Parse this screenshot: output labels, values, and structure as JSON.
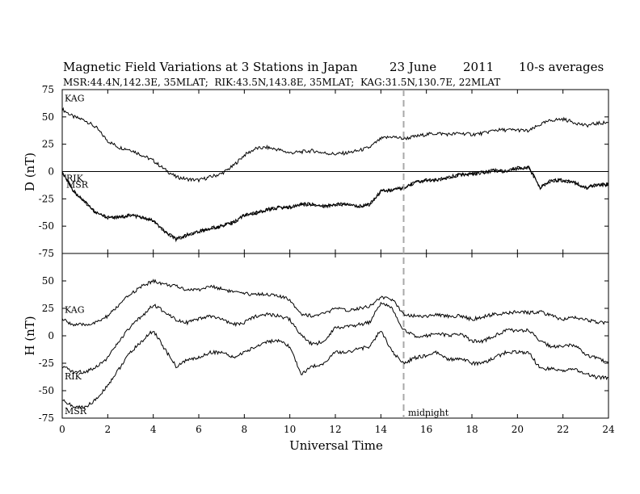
{
  "header": {
    "title": "Magnetic Field Variations at 3 Stations in Japan",
    "date": "23 June",
    "year": "2011",
    "averaging": "10-s averages",
    "stations": "MSR:44.4N,142.3E, 35MLAT;  RIK:43.5N,143.8E, 35MLAT;  KAG:31.5N,130.7E, 22MLAT"
  },
  "chart_data": [
    {
      "type": "line",
      "panel": "D",
      "ylabel": "D (nT)",
      "ylim": [
        -75,
        75
      ],
      "yticks": [
        75,
        50,
        25,
        0,
        -25,
        -50,
        -75
      ],
      "xlim": [
        0,
        24
      ],
      "zero_line": true,
      "series": [
        {
          "name": "KAG",
          "x": [
            0,
            0.5,
            1,
            1.5,
            2,
            2.5,
            3,
            3.5,
            4,
            4.5,
            5,
            5.5,
            6,
            6.5,
            7,
            7.5,
            8,
            8.5,
            9,
            9.5,
            10,
            10.5,
            11,
            11.5,
            12,
            12.5,
            13,
            13.5,
            14,
            14.5,
            15,
            15.5,
            16,
            16.5,
            17,
            17.5,
            18,
            18.5,
            19,
            19.5,
            20,
            20.5,
            21,
            21.5,
            22,
            22.5,
            23,
            23.5,
            24
          ],
          "y": [
            57,
            50,
            47,
            40,
            28,
            22,
            20,
            15,
            10,
            2,
            -5,
            -7,
            -8,
            -5,
            -2,
            5,
            15,
            21,
            22,
            20,
            17,
            18,
            19,
            17,
            16,
            17,
            19,
            22,
            30,
            32,
            30,
            32,
            34,
            35,
            34,
            35,
            34,
            35,
            38,
            38,
            38,
            37,
            43,
            47,
            48,
            45,
            42,
            44,
            45
          ]
        },
        {
          "name": "RIK",
          "x": [
            0,
            0.5,
            1,
            1.5,
            2,
            2.5,
            3,
            3.5,
            4,
            4.5,
            5,
            5.5,
            6,
            6.5,
            7,
            7.5,
            8,
            8.5,
            9,
            9.5,
            10,
            10.5,
            11,
            11.5,
            12,
            12.5,
            13,
            13.5,
            14,
            14.5,
            15,
            15.5,
            16,
            16.5,
            17,
            17.5,
            18,
            18.5,
            19,
            19.5,
            20,
            20.5,
            21,
            21.5,
            22,
            22.5,
            23,
            23.5,
            24
          ],
          "y": [
            0,
            -18,
            -28,
            -38,
            -42,
            -42,
            -40,
            -42,
            -45,
            -55,
            -62,
            -58,
            -55,
            -52,
            -50,
            -47,
            -40,
            -38,
            -35,
            -33,
            -33,
            -30,
            -30,
            -32,
            -30,
            -30,
            -32,
            -30,
            -18,
            -17,
            -15,
            -10,
            -8,
            -8,
            -5,
            -3,
            -2,
            -1,
            1,
            0,
            3,
            4,
            -15,
            -8,
            -8,
            -10,
            -15,
            -12,
            -12
          ]
        },
        {
          "name": "MSR",
          "x": [
            0,
            0.5,
            1,
            1.5,
            2,
            2.5,
            3,
            3.5,
            4,
            4.5,
            5,
            5.5,
            6,
            6.5,
            7,
            7.5,
            8,
            8.5,
            9,
            9.5,
            10,
            10.5,
            11,
            11.5,
            12,
            12.5,
            13,
            13.5,
            14,
            14.5,
            15,
            15.5,
            16,
            16.5,
            17,
            17.5,
            18,
            18.5,
            19,
            19.5,
            20,
            20.5,
            21,
            21.5,
            22,
            22.5,
            23,
            23.5,
            24
          ],
          "y": [
            0,
            -18,
            -28,
            -38,
            -42,
            -42,
            -40,
            -42,
            -45,
            -55,
            -62,
            -58,
            -55,
            -52,
            -50,
            -47,
            -40,
            -38,
            -35,
            -33,
            -33,
            -30,
            -30,
            -32,
            -30,
            -30,
            -32,
            -30,
            -18,
            -17,
            -15,
            -10,
            -8,
            -8,
            -5,
            -3,
            -2,
            -1,
            1,
            0,
            3,
            4,
            -15,
            -8,
            -8,
            -10,
            -15,
            -12,
            -12
          ]
        }
      ]
    },
    {
      "type": "line",
      "panel": "H",
      "ylabel": "H (nT)",
      "ylim": [
        -75,
        75
      ],
      "yticks": [
        75,
        50,
        25,
        0,
        -25,
        -50,
        -75
      ],
      "xlim": [
        0,
        24
      ],
      "xticks": [
        0,
        2,
        4,
        6,
        8,
        10,
        12,
        14,
        16,
        18,
        20,
        22,
        24
      ],
      "xlabel": "Universal Time",
      "vline": {
        "x": 15,
        "label": "midnight"
      },
      "series": [
        {
          "name": "KAG",
          "x": [
            0,
            0.5,
            1,
            1.5,
            2,
            2.5,
            3,
            3.5,
            4,
            4.5,
            5,
            5.5,
            6,
            6.5,
            7,
            7.5,
            8,
            8.5,
            9,
            9.5,
            10,
            10.5,
            11,
            11.5,
            12,
            12.5,
            13,
            13.5,
            14,
            14.5,
            15,
            15.5,
            16,
            16.5,
            17,
            17.5,
            18,
            18.5,
            19,
            19.5,
            20,
            20.5,
            21,
            21.5,
            22,
            22.5,
            23,
            23.5,
            24
          ],
          "y": [
            15,
            10,
            10,
            12,
            18,
            28,
            38,
            45,
            50,
            47,
            45,
            42,
            42,
            45,
            43,
            40,
            38,
            38,
            38,
            36,
            33,
            20,
            18,
            20,
            25,
            23,
            25,
            27,
            35,
            33,
            20,
            18,
            18,
            19,
            18,
            18,
            15,
            17,
            20,
            20,
            22,
            21,
            22,
            18,
            15,
            17,
            15,
            12,
            12
          ]
        },
        {
          "name": "RIK",
          "x": [
            0,
            0.5,
            1,
            1.5,
            2,
            2.5,
            3,
            3.5,
            4,
            4.5,
            5,
            5.5,
            6,
            6.5,
            7,
            7.5,
            8,
            8.5,
            9,
            9.5,
            10,
            10.5,
            11,
            11.5,
            12,
            12.5,
            13,
            13.5,
            14,
            14.5,
            15,
            15.5,
            16,
            16.5,
            17,
            17.5,
            18,
            18.5,
            19,
            19.5,
            20,
            20.5,
            21,
            21.5,
            22,
            22.5,
            23,
            23.5,
            24
          ],
          "y": [
            -28,
            -33,
            -33,
            -28,
            -20,
            -5,
            8,
            18,
            28,
            22,
            15,
            12,
            15,
            18,
            15,
            10,
            12,
            18,
            20,
            18,
            15,
            0,
            -8,
            -5,
            8,
            8,
            10,
            12,
            30,
            25,
            5,
            0,
            0,
            2,
            0,
            2,
            -5,
            -5,
            0,
            5,
            5,
            5,
            -5,
            -10,
            -10,
            -8,
            -18,
            -20,
            -25
          ]
        },
        {
          "name": "MSR",
          "x": [
            0,
            0.5,
            1,
            1.5,
            2,
            2.5,
            3,
            3.5,
            4,
            4.5,
            5,
            5.5,
            6,
            6.5,
            7,
            7.5,
            8,
            8.5,
            9,
            9.5,
            10,
            10.5,
            11,
            11.5,
            12,
            12.5,
            13,
            13.5,
            14,
            14.5,
            15,
            15.5,
            16,
            16.5,
            17,
            17.5,
            18,
            18.5,
            19,
            19.5,
            20,
            20.5,
            21,
            21.5,
            22,
            22.5,
            23,
            23.5,
            24
          ],
          "y": [
            -58,
            -65,
            -65,
            -58,
            -45,
            -30,
            -15,
            -5,
            5,
            -12,
            -28,
            -22,
            -20,
            -15,
            -15,
            -20,
            -15,
            -10,
            -5,
            -5,
            -10,
            -35,
            -28,
            -25,
            -15,
            -15,
            -12,
            -10,
            5,
            -15,
            -25,
            -20,
            -18,
            -15,
            -22,
            -20,
            -25,
            -25,
            -20,
            -15,
            -15,
            -15,
            -30,
            -30,
            -32,
            -30,
            -35,
            -38,
            -38
          ]
        }
      ]
    }
  ]
}
